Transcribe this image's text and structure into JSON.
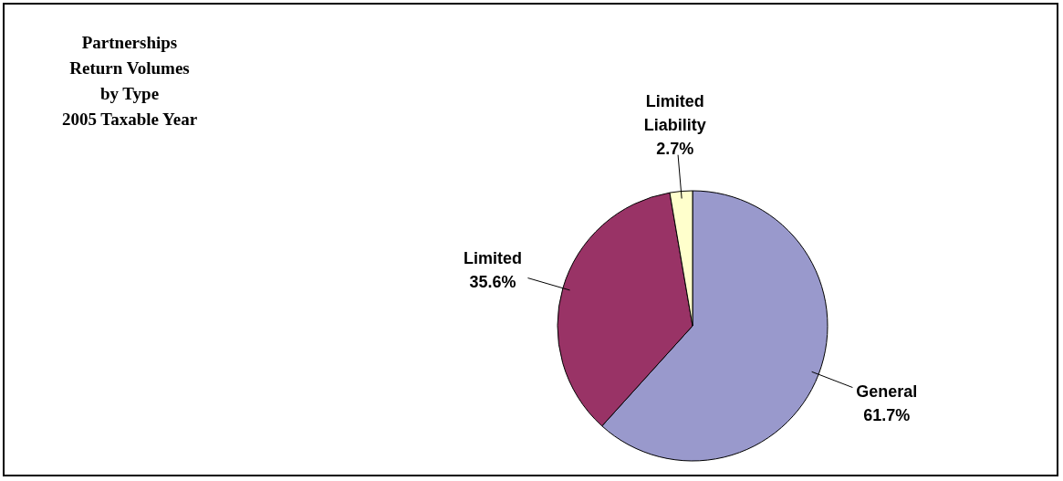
{
  "chart_data": {
    "type": "pie",
    "title": "Partnerships\nReturn Volumes\nby Type\n2005 Taxable Year",
    "categories": [
      "General",
      "Limited",
      "Limited Liability"
    ],
    "values": [
      61.7,
      35.6,
      2.7
    ],
    "colors": [
      "#9999cc",
      "#993366",
      "#ffffcc"
    ],
    "value_labels": [
      "61.7%",
      "35.6%",
      "2.7%"
    ]
  }
}
